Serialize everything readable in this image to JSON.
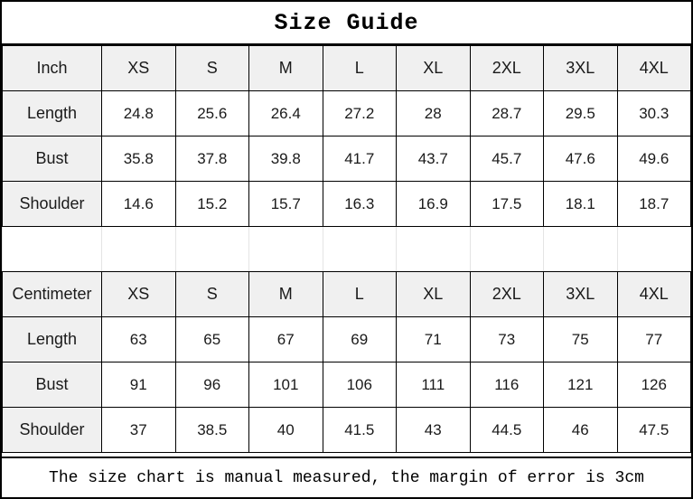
{
  "title": "Size Guide",
  "sizes": [
    "XS",
    "S",
    "M",
    "L",
    "XL",
    "2XL",
    "3XL",
    "4XL"
  ],
  "tables": [
    {
      "unit_label": "Inch",
      "rows": [
        {
          "label": "Length",
          "values": [
            "24.8",
            "25.6",
            "26.4",
            "27.2",
            "28",
            "28.7",
            "29.5",
            "30.3"
          ]
        },
        {
          "label": "Bust",
          "values": [
            "35.8",
            "37.8",
            "39.8",
            "41.7",
            "43.7",
            "45.7",
            "47.6",
            "49.6"
          ]
        },
        {
          "label": "Shoulder",
          "values": [
            "14.6",
            "15.2",
            "15.7",
            "16.3",
            "16.9",
            "17.5",
            "18.1",
            "18.7"
          ]
        }
      ]
    },
    {
      "unit_label": "Centimeter",
      "rows": [
        {
          "label": "Length",
          "values": [
            "63",
            "65",
            "67",
            "69",
            "71",
            "73",
            "75",
            "77"
          ]
        },
        {
          "label": "Bust",
          "values": [
            "91",
            "96",
            "101",
            "106",
            "111",
            "116",
            "121",
            "126"
          ]
        },
        {
          "label": "Shoulder",
          "values": [
            "37",
            "38.5",
            "40",
            "41.5",
            "43",
            "44.5",
            "46",
            "47.5"
          ]
        }
      ]
    }
  ],
  "footer_note": "The size chart is manual measured, the margin of error is 3cm",
  "colors": {
    "header_bg": "#f0f0f0",
    "grid_border": "#000000",
    "separator_grid": "#e4e4e4",
    "background": "#ffffff",
    "text": "#1a1a1a"
  },
  "chart_data": {
    "type": "table",
    "title": "Size Guide",
    "column_headers_note": "Each sub-table: first column is measurement name, remaining columns are sizes XS-4XL",
    "sizes": [
      "XS",
      "S",
      "M",
      "L",
      "XL",
      "2XL",
      "3XL",
      "4XL"
    ],
    "tables": [
      {
        "unit": "Inch",
        "rows": {
          "Length": [
            24.8,
            25.6,
            26.4,
            27.2,
            28,
            28.7,
            29.5,
            30.3
          ],
          "Bust": [
            35.8,
            37.8,
            39.8,
            41.7,
            43.7,
            45.7,
            47.6,
            49.6
          ],
          "Shoulder": [
            14.6,
            15.2,
            15.7,
            16.3,
            16.9,
            17.5,
            18.1,
            18.7
          ]
        }
      },
      {
        "unit": "Centimeter",
        "rows": {
          "Length": [
            63,
            65,
            67,
            69,
            71,
            73,
            75,
            77
          ],
          "Bust": [
            91,
            96,
            101,
            106,
            111,
            116,
            121,
            126
          ],
          "Shoulder": [
            37,
            38.5,
            40,
            41.5,
            43,
            44.5,
            46,
            47.5
          ]
        }
      }
    ],
    "annotation": "The size chart is manual measured, the margin of error is 3cm"
  }
}
